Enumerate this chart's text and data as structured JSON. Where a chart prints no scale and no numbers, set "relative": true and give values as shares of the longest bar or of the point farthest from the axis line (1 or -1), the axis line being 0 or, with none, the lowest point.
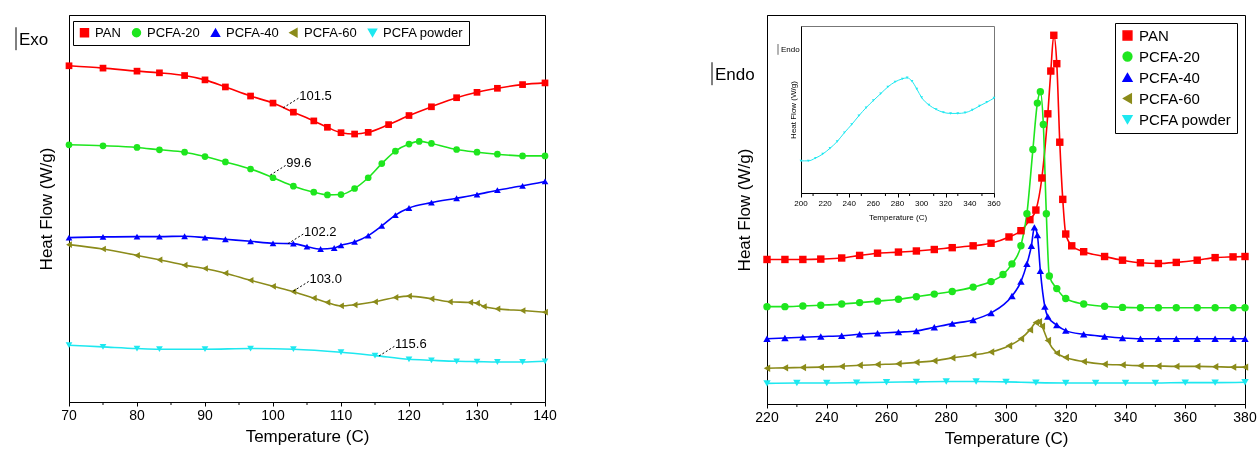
{
  "chart_data": [
    {
      "type": "line",
      "relative": true,
      "xlabel": "Temperature (C)",
      "ylabel": "Heat Flow (W/g)",
      "legend": "top",
      "xlim": [
        70,
        140
      ],
      "xticks": [
        70,
        {
          "value": 75,
          "label": null
        },
        80,
        {
          "value": 85,
          "label": null
        },
        90,
        {
          "value": 95,
          "label": null
        },
        100,
        {
          "value": 105,
          "label": null
        },
        110,
        {
          "value": 115,
          "label": null
        },
        120,
        {
          "value": 125,
          "label": null
        },
        130,
        {
          "value": 135,
          "label": null
        },
        140
      ],
      "annotations": [
        "Exo",
        {
          "text": "101.5",
          "x": 101.5,
          "y": 0.875
        },
        {
          "text": "99.6",
          "x": 99.6,
          "y": 0.675
        },
        {
          "text": "102.2",
          "x": 102.2,
          "y": 0.471
        },
        {
          "text": "103.0",
          "x": 103.0,
          "y": 0.33
        },
        {
          "text": "115.6",
          "x": 115.6,
          "y": 0.137
        }
      ],
      "series": [
        {
          "name": "PAN",
          "color": "#ff0000",
          "marker": "square",
          "x": [
            70,
            75,
            80,
            83.3,
            87,
            90,
            93,
            96.7,
            100,
            103,
            106,
            108,
            110,
            112,
            114,
            117,
            120,
            123.3,
            127,
            130,
            133,
            136.7,
            140
          ],
          "values": [
            1.0,
            0.993,
            0.984,
            0.979,
            0.971,
            0.958,
            0.937,
            0.91,
            0.889,
            0.862,
            0.836,
            0.817,
            0.801,
            0.797,
            0.802,
            0.825,
            0.852,
            0.878,
            0.905,
            0.921,
            0.933,
            0.944,
            0.949
          ]
        },
        {
          "name": "PCFA-20",
          "color": "#1ee61e",
          "marker": "circle",
          "x": [
            70,
            75,
            80,
            83.3,
            87,
            90,
            93,
            96.7,
            100,
            103,
            106,
            108,
            110,
            112,
            114,
            116,
            118,
            120,
            121.5,
            123.3,
            127,
            130,
            133,
            136.7,
            140
          ],
          "values": [
            0.765,
            0.762,
            0.757,
            0.75,
            0.743,
            0.73,
            0.714,
            0.693,
            0.667,
            0.642,
            0.624,
            0.616,
            0.617,
            0.635,
            0.667,
            0.709,
            0.746,
            0.767,
            0.775,
            0.769,
            0.751,
            0.743,
            0.737,
            0.732,
            0.732
          ]
        },
        {
          "name": "PCFA-40",
          "color": "#0000ff",
          "marker": "triangle-up",
          "x": [
            70,
            75,
            80,
            83.3,
            87,
            90,
            93,
            96.7,
            100,
            103,
            105,
            107,
            109,
            110,
            112,
            114,
            116,
            118,
            120,
            123.3,
            127,
            130,
            133,
            136.7,
            140
          ],
          "values": [
            0.489,
            0.491,
            0.492,
            0.492,
            0.493,
            0.489,
            0.484,
            0.478,
            0.472,
            0.471,
            0.462,
            0.455,
            0.458,
            0.466,
            0.476,
            0.495,
            0.524,
            0.556,
            0.577,
            0.593,
            0.606,
            0.617,
            0.63,
            0.643,
            0.656
          ]
        },
        {
          "name": "PCFA-60",
          "color": "#8b8b1a",
          "marker": "triangle-left",
          "x": [
            70,
            75,
            80,
            83.3,
            87,
            90,
            93,
            96.7,
            100,
            103,
            106,
            108,
            110,
            112,
            115,
            118,
            120,
            123.3,
            126,
            129,
            130,
            131,
            133,
            136.7,
            140
          ],
          "values": [
            0.468,
            0.455,
            0.436,
            0.423,
            0.407,
            0.397,
            0.383,
            0.362,
            0.344,
            0.328,
            0.309,
            0.296,
            0.286,
            0.289,
            0.298,
            0.311,
            0.315,
            0.307,
            0.298,
            0.296,
            0.294,
            0.284,
            0.277,
            0.272,
            0.267
          ]
        },
        {
          "name": "PCFA powder",
          "color": "#1ee8f0",
          "marker": "triangle-down",
          "x": [
            70,
            75,
            80,
            83.3,
            90,
            96.7,
            103,
            110,
            115,
            120,
            123.3,
            127,
            130,
            133,
            136.7,
            140
          ],
          "values": [
            0.169,
            0.164,
            0.159,
            0.157,
            0.157,
            0.159,
            0.157,
            0.148,
            0.138,
            0.127,
            0.124,
            0.121,
            0.12,
            0.119,
            0.119,
            0.121
          ]
        }
      ]
    },
    {
      "type": "line",
      "relative": true,
      "xlabel": "Temperature (C)",
      "ylabel": "Heat Flow (W/g)",
      "legend": "top right",
      "xlim": [
        220,
        380
      ],
      "xticks": [
        220,
        {
          "value": 230,
          "label": null
        },
        240,
        {
          "value": 250,
          "label": null
        },
        260,
        {
          "value": 270,
          "label": null
        },
        280,
        {
          "value": 290,
          "label": null
        },
        300,
        {
          "value": 310,
          "label": null
        },
        320,
        {
          "value": 330,
          "label": null
        },
        340,
        {
          "value": 350,
          "label": null
        },
        360,
        {
          "value": 370,
          "label": null
        },
        380
      ],
      "annotations": [
        "Endo"
      ],
      "series": [
        {
          "name": "PAN",
          "color": "#ff0000",
          "marker": "square",
          "x": [
            220,
            226,
            232,
            238,
            245,
            251,
            257,
            264,
            270,
            276,
            282,
            289,
            295,
            301,
            305,
            308,
            310,
            312,
            314,
            315,
            316,
            317,
            318,
            319,
            320,
            322,
            326,
            333,
            339,
            345,
            351,
            357,
            364,
            370,
            376,
            380
          ],
          "values": [
            0.392,
            0.392,
            0.392,
            0.393,
            0.396,
            0.403,
            0.409,
            0.412,
            0.415,
            0.419,
            0.424,
            0.429,
            0.436,
            0.453,
            0.47,
            0.5,
            0.526,
            0.613,
            0.787,
            0.903,
            1.0,
            0.923,
            0.71,
            0.555,
            0.461,
            0.429,
            0.413,
            0.4,
            0.39,
            0.383,
            0.381,
            0.384,
            0.39,
            0.397,
            0.399,
            0.4
          ]
        },
        {
          "name": "PCFA-20",
          "color": "#1ee61e",
          "marker": "circle",
          "x": [
            220,
            226,
            232,
            238,
            245,
            251,
            257,
            264,
            270,
            276,
            282,
            289,
            295,
            299,
            302,
            305,
            307,
            309,
            310.5,
            311.5,
            312.5,
            313.5,
            314.5,
            317,
            320,
            326,
            333,
            339,
            345,
            351,
            357,
            364,
            370,
            376,
            380
          ],
          "values": [
            0.264,
            0.264,
            0.266,
            0.268,
            0.271,
            0.275,
            0.279,
            0.284,
            0.291,
            0.298,
            0.305,
            0.317,
            0.332,
            0.351,
            0.38,
            0.429,
            0.516,
            0.69,
            0.816,
            0.847,
            0.758,
            0.516,
            0.347,
            0.313,
            0.286,
            0.271,
            0.265,
            0.262,
            0.261,
            0.261,
            0.261,
            0.261,
            0.261,
            0.261,
            0.261
          ]
        },
        {
          "name": "PCFA-40",
          "color": "#0000ff",
          "marker": "triangle-up",
          "x": [
            220,
            226,
            232,
            238,
            245,
            251,
            257,
            264,
            270,
            276,
            282,
            289,
            295,
            302,
            305,
            307,
            308.5,
            309.5,
            310.5,
            311.5,
            313,
            314,
            317,
            320,
            326,
            333,
            339,
            345,
            351,
            357,
            364,
            370,
            376,
            380
          ],
          "values": [
            0.177,
            0.179,
            0.181,
            0.183,
            0.185,
            0.189,
            0.192,
            0.195,
            0.198,
            0.208,
            0.218,
            0.228,
            0.247,
            0.293,
            0.332,
            0.38,
            0.429,
            0.479,
            0.458,
            0.361,
            0.264,
            0.237,
            0.214,
            0.199,
            0.189,
            0.183,
            0.179,
            0.177,
            0.177,
            0.177,
            0.177,
            0.177,
            0.177,
            0.177
          ]
        },
        {
          "name": "PCFA-60",
          "color": "#8b8b1a",
          "marker": "triangle-left",
          "x": [
            220,
            226,
            232,
            238,
            245,
            251,
            257,
            264,
            270,
            276,
            282,
            289,
            295,
            301,
            305,
            308,
            310,
            311,
            312,
            314,
            317,
            320,
            326,
            333,
            339,
            345,
            351,
            357,
            364,
            370,
            376,
            380
          ],
          "values": [
            0.097,
            0.098,
            0.099,
            0.1,
            0.102,
            0.105,
            0.107,
            0.109,
            0.113,
            0.117,
            0.125,
            0.133,
            0.141,
            0.158,
            0.177,
            0.201,
            0.221,
            0.223,
            0.211,
            0.172,
            0.138,
            0.126,
            0.115,
            0.108,
            0.106,
            0.104,
            0.103,
            0.102,
            0.102,
            0.101,
            0.1,
            0.1
          ]
        },
        {
          "name": "PCFA powder",
          "color": "#1ee8f0",
          "marker": "triangle-down",
          "x": [
            220,
            230,
            240,
            250,
            260,
            270,
            280,
            290,
            300,
            310,
            320,
            330,
            340,
            350,
            360,
            370,
            380
          ],
          "values": [
            0.056,
            0.057,
            0.057,
            0.058,
            0.059,
            0.06,
            0.061,
            0.061,
            0.06,
            0.058,
            0.057,
            0.057,
            0.057,
            0.057,
            0.058,
            0.058,
            0.059
          ]
        }
      ]
    },
    {
      "type": "line",
      "relative": true,
      "xlabel": "Temperature (C)",
      "ylabel": "Heat Flow (W/g)",
      "xlim": [
        200,
        360
      ],
      "xticks": [
        200,
        {
          "value": 210,
          "label": null
        },
        220,
        {
          "value": 230,
          "label": null
        },
        240,
        {
          "value": 250,
          "label": null
        },
        260,
        {
          "value": 270,
          "label": null
        },
        280,
        {
          "value": 290,
          "label": null
        },
        300,
        {
          "value": 310,
          "label": null
        },
        320,
        {
          "value": 330,
          "label": null
        },
        340,
        {
          "value": 350,
          "label": null
        },
        360
      ],
      "annotations": [
        "Endo"
      ],
      "series": [
        {
          "color": "#1ee8f0",
          "marker": "triangle-down",
          "x": [
            200,
            206,
            212,
            218,
            224,
            230,
            236,
            242,
            248,
            254,
            260,
            266,
            272,
            278,
            284,
            288,
            292,
            296,
            300,
            306,
            312,
            318,
            324,
            330,
            336,
            342,
            348,
            354,
            360
          ],
          "values": [
            0.279,
            0.279,
            0.303,
            0.338,
            0.388,
            0.447,
            0.524,
            0.594,
            0.671,
            0.741,
            0.803,
            0.862,
            0.921,
            0.965,
            0.991,
            1.0,
            0.971,
            0.903,
            0.829,
            0.765,
            0.726,
            0.7,
            0.691,
            0.691,
            0.697,
            0.721,
            0.756,
            0.788,
            0.824
          ]
        }
      ]
    }
  ]
}
